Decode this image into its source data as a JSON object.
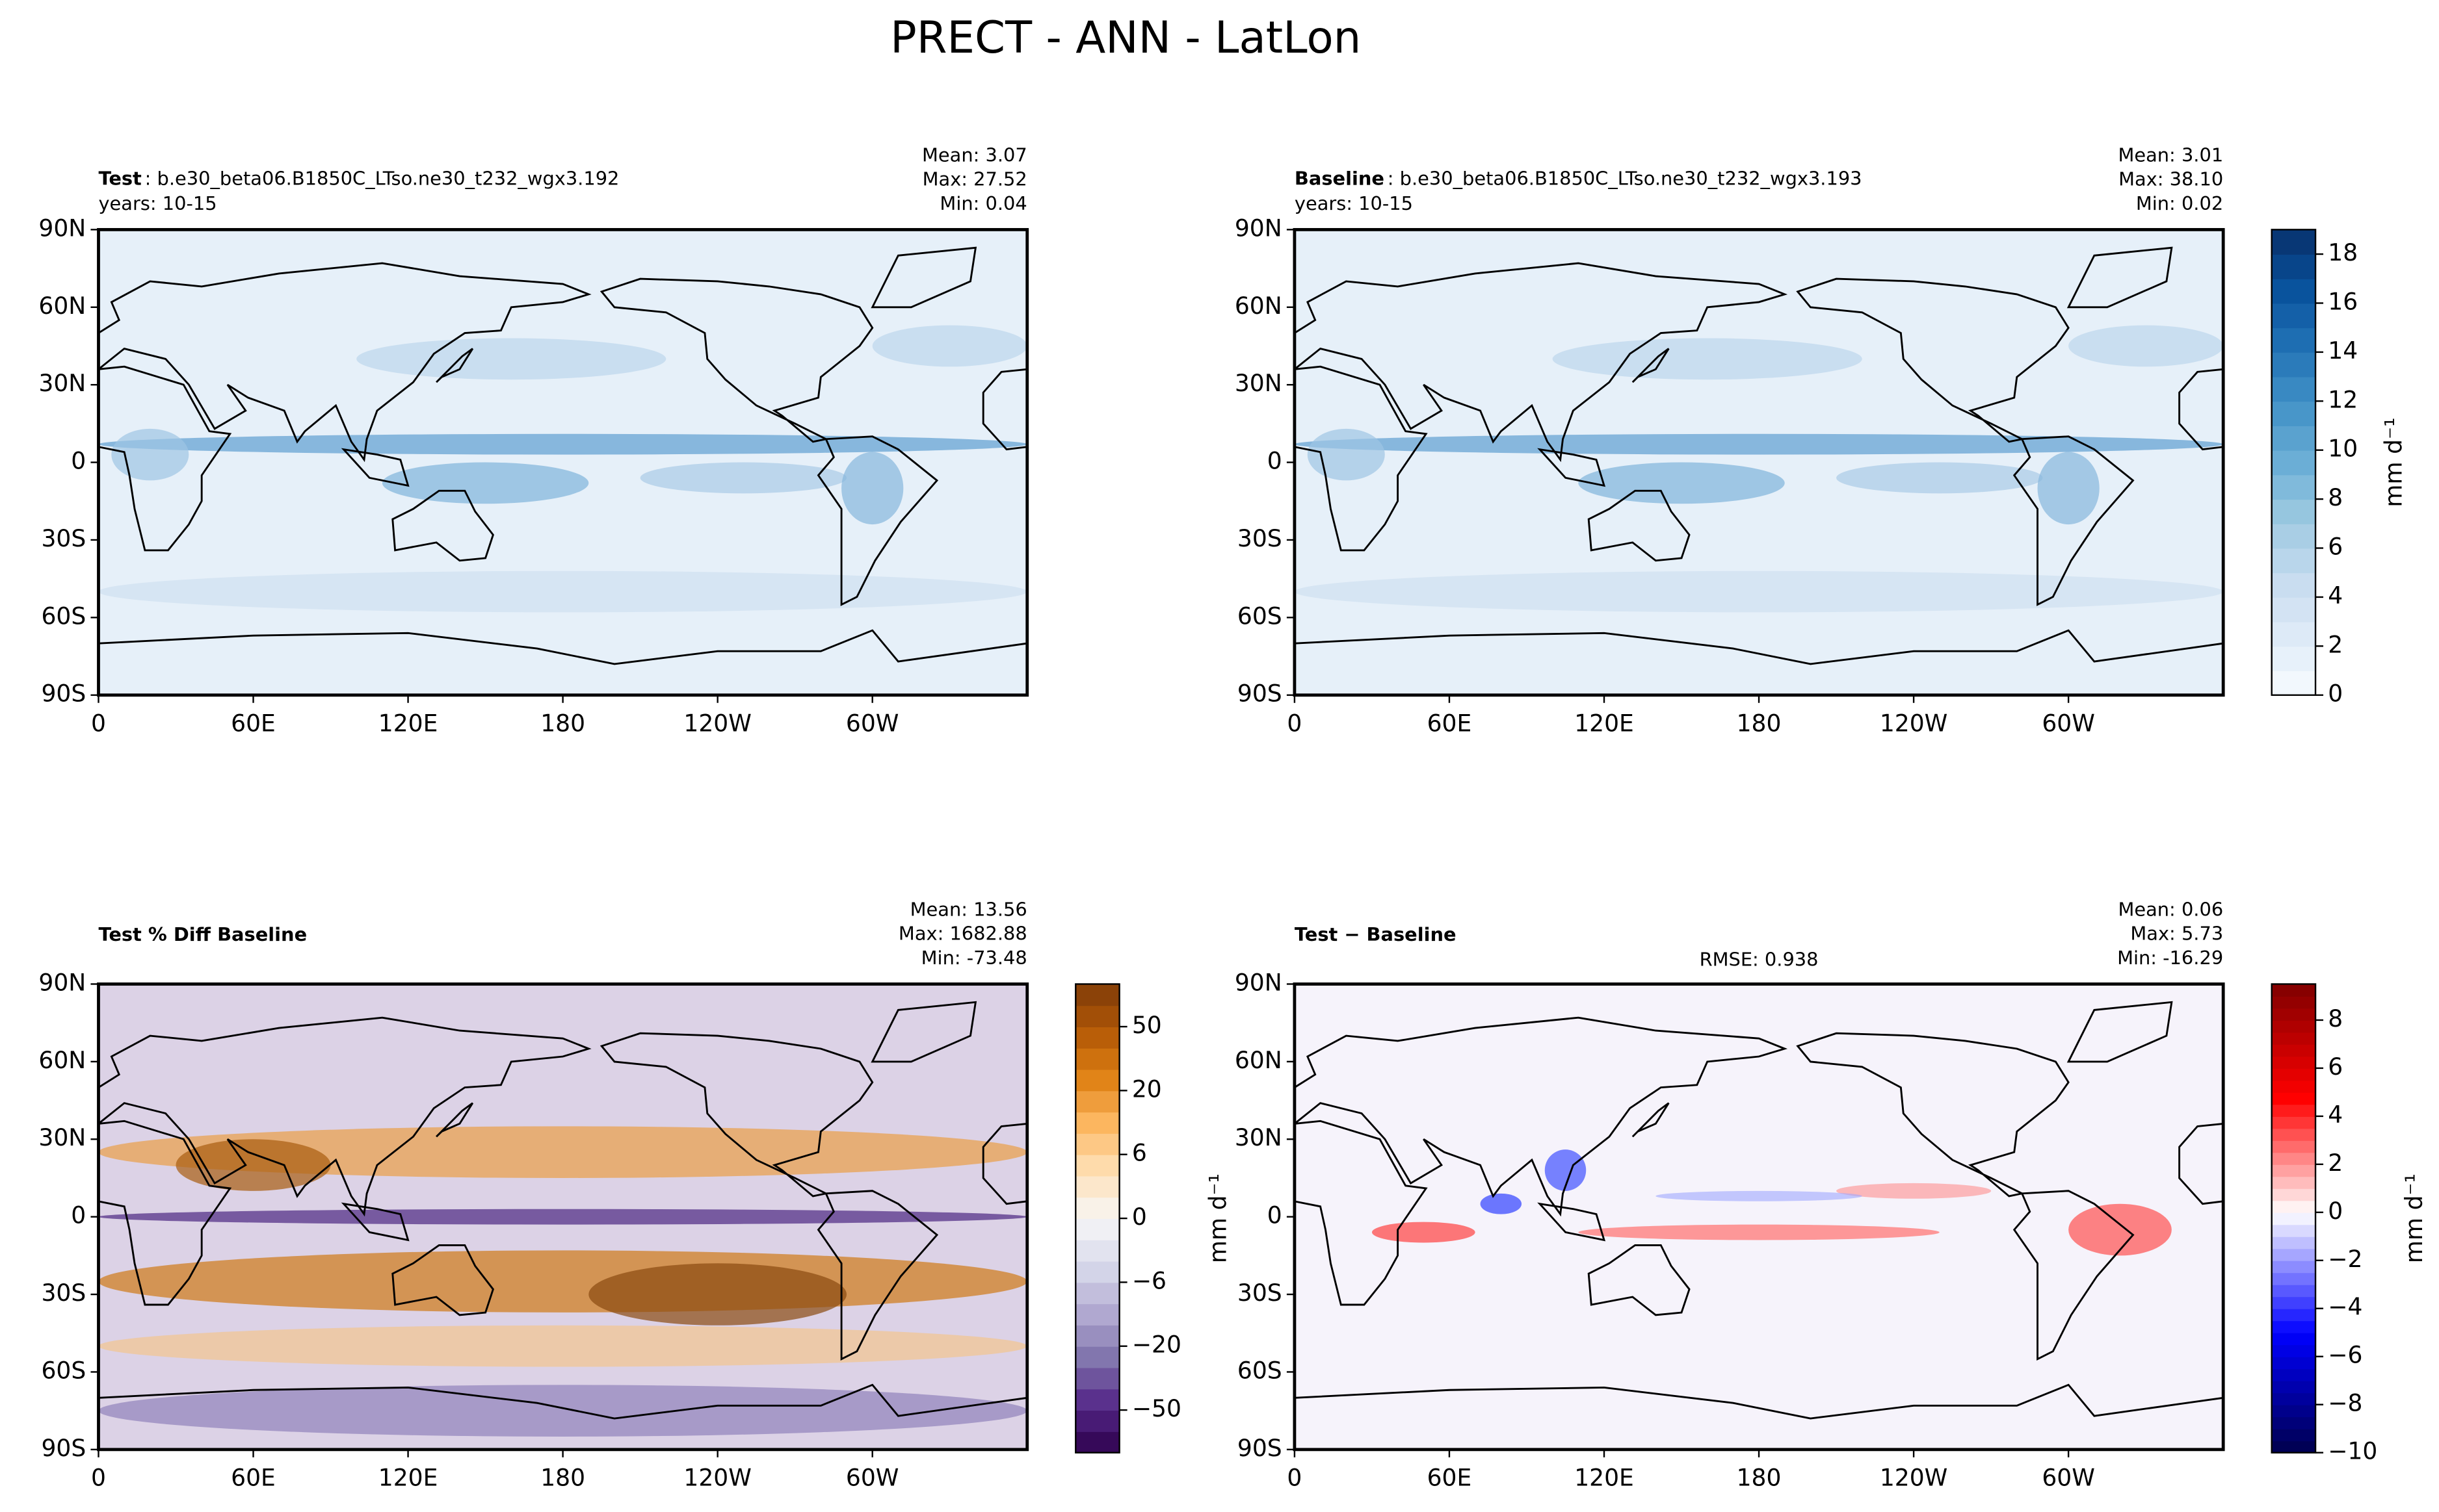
{
  "title": "PRECT - ANN - LatLon",
  "chart_data": [
    {
      "type": "map",
      "name": "Test",
      "case": ": b.e30_beta06.B1850C_LTso.ne30_t232_wgx3.192",
      "years": "years: 10-15",
      "stats": [
        "Mean:  3.07",
        "Max: 27.52",
        "Min:  0.04"
      ],
      "field": "precip",
      "xlim": [
        0,
        360
      ],
      "ylim": [
        -90,
        90
      ],
      "xticks": [
        0,
        {
          "value": 60,
          "label": "60E"
        },
        {
          "value": 120,
          "label": "120E"
        },
        180,
        {
          "value": 240,
          "label": "120W"
        },
        {
          "value": 300,
          "label": "60W"
        }
      ],
      "yticks": [
        {
          "value": -90,
          "label": "90S"
        },
        {
          "value": -60,
          "label": "60S"
        },
        {
          "value": -30,
          "label": "30S"
        },
        0,
        {
          "value": 30,
          "label": "30N"
        },
        {
          "value": 60,
          "label": "60N"
        },
        {
          "value": 90,
          "label": "90N"
        }
      ]
    },
    {
      "type": "map",
      "name": "Baseline",
      "case": ": b.e30_beta06.B1850C_LTso.ne30_t232_wgx3.193",
      "years": "years: 10-15",
      "stats": [
        "Mean:  3.01",
        "Max: 38.10",
        "Min:  0.02"
      ],
      "field": "precip",
      "xlim": [
        0,
        360
      ],
      "ylim": [
        -90,
        90
      ],
      "xticks": [
        0,
        {
          "value": 60,
          "label": "60E"
        },
        {
          "value": 120,
          "label": "120E"
        },
        180,
        {
          "value": 240,
          "label": "120W"
        },
        {
          "value": 300,
          "label": "60W"
        }
      ],
      "yticks": [
        {
          "value": -90,
          "label": "90S"
        },
        {
          "value": -60,
          "label": "60S"
        },
        {
          "value": -30,
          "label": "30S"
        },
        0,
        {
          "value": 30,
          "label": "30N"
        },
        {
          "value": 60,
          "label": "60N"
        },
        {
          "value": 90,
          "label": "90N"
        }
      ],
      "colorbar": {
        "cmap": "Blues",
        "lim": [
          0,
          19
        ],
        "ticks": [
          0,
          2,
          4,
          6,
          8,
          10,
          12,
          14,
          16,
          18
        ],
        "label": "mm d⁻¹"
      }
    },
    {
      "type": "map",
      "name": "Test % Diff Baseline",
      "stats": [
        "Mean: 13.56",
        "Max: 1682.88",
        "Min: -73.48"
      ],
      "field": "pctdiff",
      "xlim": [
        0,
        360
      ],
      "ylim": [
        -90,
        90
      ],
      "xticks": [
        0,
        {
          "value": 60,
          "label": "60E"
        },
        {
          "value": 120,
          "label": "120E"
        },
        180,
        {
          "value": 240,
          "label": "120W"
        },
        {
          "value": 300,
          "label": "60W"
        }
      ],
      "yticks": [
        {
          "value": -90,
          "label": "90S"
        },
        {
          "value": -60,
          "label": "60S"
        },
        {
          "value": -30,
          "label": "30S"
        },
        0,
        {
          "value": 30,
          "label": "30N"
        },
        {
          "value": 60,
          "label": "60N"
        },
        {
          "value": 90,
          "label": "90N"
        }
      ],
      "colorbar": {
        "cmap": "PuOr",
        "levels": [
          -80,
          -60,
          -50,
          -40,
          -30,
          -20,
          -15,
          -10,
          -6,
          -4,
          -2,
          0,
          2,
          4,
          6,
          10,
          15,
          20,
          30,
          40,
          50,
          60,
          80
        ],
        "ticks": [
          {
            "value": -50,
            "label": "−50"
          },
          {
            "value": -20,
            "label": "−20"
          },
          {
            "value": -6,
            "label": "−6"
          },
          0,
          6,
          20,
          50
        ],
        "label": "mm d⁻¹"
      }
    },
    {
      "type": "map",
      "name": "Test − Baseline",
      "rmse": "RMSE: 0.938",
      "stats": [
        "Mean:  0.06",
        "Max:  5.73",
        "Min: -16.29"
      ],
      "field": "diff",
      "xlim": [
        0,
        360
      ],
      "ylim": [
        -90,
        90
      ],
      "xticks": [
        0,
        {
          "value": 60,
          "label": "60E"
        },
        {
          "value": 120,
          "label": "120E"
        },
        180,
        {
          "value": 240,
          "label": "120W"
        },
        {
          "value": 300,
          "label": "60W"
        }
      ],
      "yticks": [
        {
          "value": -90,
          "label": "90S"
        },
        {
          "value": -60,
          "label": "60S"
        },
        {
          "value": -30,
          "label": "30S"
        },
        0,
        {
          "value": 30,
          "label": "30N"
        },
        {
          "value": 60,
          "label": "60N"
        },
        {
          "value": 90,
          "label": "90N"
        }
      ],
      "colorbar": {
        "cmap": "seismic",
        "lim": [
          -10,
          9.5
        ],
        "ticks": [
          {
            "value": -10,
            "label": "−10"
          },
          {
            "value": -8,
            "label": "−8"
          },
          {
            "value": -6,
            "label": "−6"
          },
          {
            "value": -4,
            "label": "−4"
          },
          {
            "value": -2,
            "label": "−2"
          },
          0,
          2,
          4,
          6,
          8
        ],
        "label": "mm d⁻¹"
      }
    }
  ]
}
